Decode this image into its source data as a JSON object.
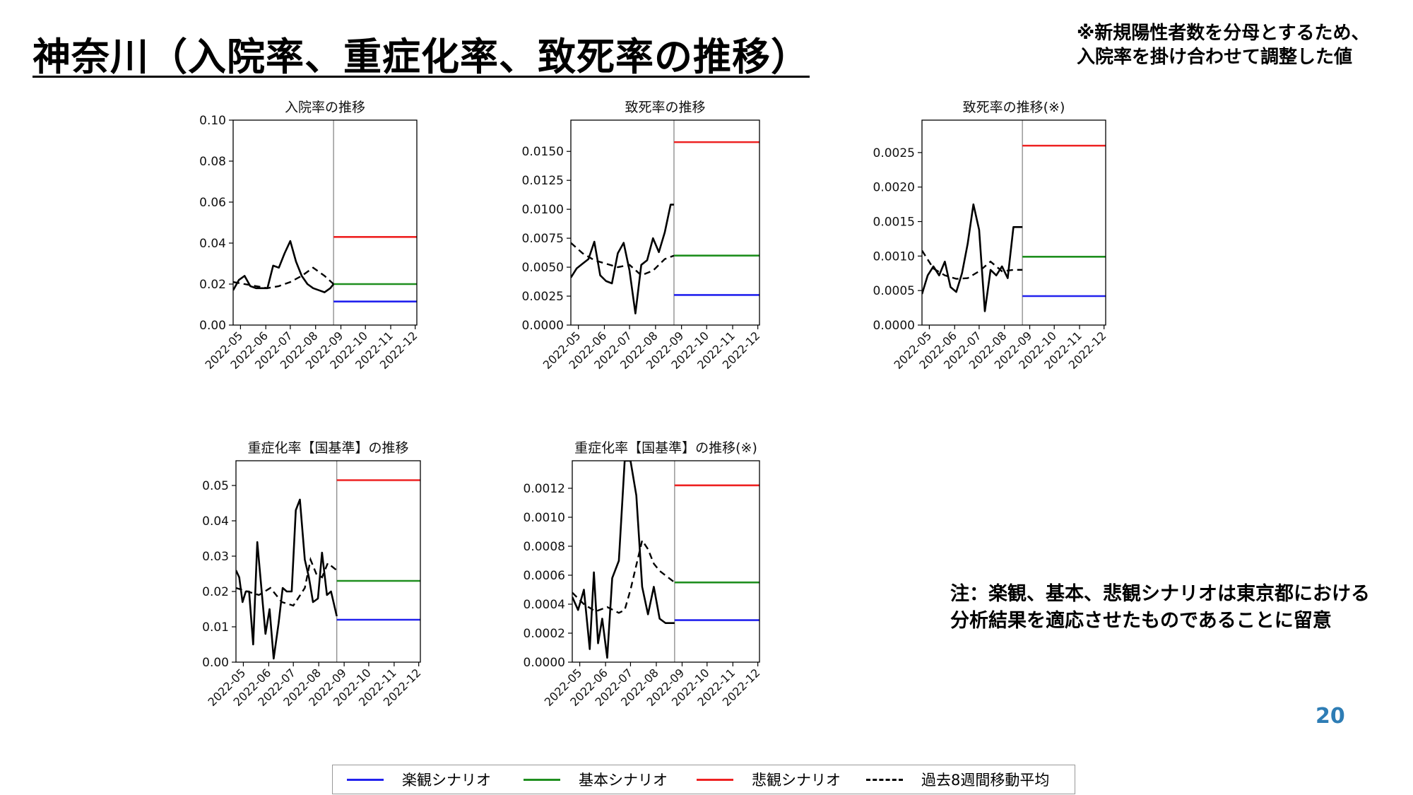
{
  "page": {
    "title": "神奈川（入院率、重症化率、致死率の推移）",
    "footnote": [
      "※新規陽性者数を分母とするため、",
      "入院率を掛け合わせて調整した値"
    ],
    "note": [
      "注：楽観、基本、悲観シナリオは東京都における",
      "分析結果を適応させたものであることに留意"
    ],
    "page_number": "20"
  },
  "colors": {
    "optimistic": "#2222ee",
    "base": "#1f8f1f",
    "pessimistic": "#ee2222",
    "moving_average": "#000000",
    "observed": "#000000",
    "divider": "#888888",
    "page_number": "#2e7db5"
  },
  "legend": [
    {
      "label": "楽観シナリオ",
      "color": "#2222ee",
      "style": "solid"
    },
    {
      "label": "基本シナリオ",
      "color": "#1f8f1f",
      "style": "solid"
    },
    {
      "label": "悲観シナリオ",
      "color": "#ee2222",
      "style": "solid"
    },
    {
      "label": "過去8週間移動平均",
      "color": "#000000",
      "style": "dashed"
    }
  ],
  "chart_data": [
    {
      "type": "line",
      "title": "入院率の推移",
      "xticks": [
        "2022-05",
        "2022-06",
        "2022-07",
        "2022-08",
        "2022-09",
        "2022-10",
        "2022-11",
        "2022-12"
      ],
      "xlim": [
        "2022-04-22",
        "2022-12-03"
      ],
      "ylim": [
        0,
        0.1
      ],
      "yticks": [
        "0.00",
        "0.02",
        "0.04",
        "0.06",
        "0.08",
        "0.10"
      ],
      "yvals": [
        0,
        0.02,
        0.04,
        0.06,
        0.08,
        0.1
      ],
      "divider_date": "2022-08-23",
      "observed": {
        "x": [
          "2022-04-22",
          "2022-04-29",
          "2022-05-06",
          "2022-05-13",
          "2022-05-20",
          "2022-05-27",
          "2022-06-03",
          "2022-06-10",
          "2022-06-17",
          "2022-06-24",
          "2022-07-01",
          "2022-07-08",
          "2022-07-15",
          "2022-07-22",
          "2022-07-29",
          "2022-08-05",
          "2022-08-12",
          "2022-08-19",
          "2022-08-23"
        ],
        "y": [
          0.017,
          0.022,
          0.024,
          0.019,
          0.018,
          0.018,
          0.018,
          0.029,
          0.028,
          0.035,
          0.041,
          0.031,
          0.024,
          0.02,
          0.018,
          0.017,
          0.016,
          0.018,
          0.02
        ]
      },
      "moving_average": {
        "x": [
          "2022-04-22",
          "2022-05-06",
          "2022-05-20",
          "2022-06-03",
          "2022-06-17",
          "2022-07-01",
          "2022-07-15",
          "2022-07-29",
          "2022-08-12",
          "2022-08-23"
        ],
        "y": [
          0.021,
          0.02,
          0.019,
          0.018,
          0.019,
          0.021,
          0.024,
          0.028,
          0.024,
          0.02
        ]
      },
      "scenarios": {
        "optimistic": 0.0115,
        "base": 0.02,
        "pessimistic": 0.043
      }
    },
    {
      "type": "line",
      "title": "致死率の推移",
      "xticks": [
        "2022-05",
        "2022-06",
        "2022-07",
        "2022-08",
        "2022-09",
        "2022-10",
        "2022-11",
        "2022-12"
      ],
      "xlim": [
        "2022-04-22",
        "2022-12-03"
      ],
      "ylim": [
        0,
        0.0177
      ],
      "yticks": [
        "0.0000",
        "0.0025",
        "0.0050",
        "0.0075",
        "0.0100",
        "0.0125",
        "0.0150"
      ],
      "yvals": [
        0,
        0.0025,
        0.005,
        0.0075,
        0.01,
        0.0125,
        0.015
      ],
      "divider_date": "2022-08-23",
      "observed": {
        "x": [
          "2022-04-22",
          "2022-04-29",
          "2022-05-06",
          "2022-05-13",
          "2022-05-20",
          "2022-05-27",
          "2022-06-03",
          "2022-06-10",
          "2022-06-17",
          "2022-06-24",
          "2022-07-01",
          "2022-07-08",
          "2022-07-15",
          "2022-07-22",
          "2022-07-29",
          "2022-08-05",
          "2022-08-12",
          "2022-08-19",
          "2022-08-23"
        ],
        "y": [
          0.0041,
          0.0049,
          0.0053,
          0.0057,
          0.0072,
          0.0043,
          0.0038,
          0.0036,
          0.0062,
          0.0071,
          0.0047,
          0.001,
          0.0052,
          0.0056,
          0.0075,
          0.0063,
          0.008,
          0.0104,
          0.0104
        ]
      },
      "moving_average": {
        "x": [
          "2022-04-22",
          "2022-05-06",
          "2022-05-20",
          "2022-06-03",
          "2022-06-17",
          "2022-07-01",
          "2022-07-15",
          "2022-07-29",
          "2022-08-12",
          "2022-08-23"
        ],
        "y": [
          0.0071,
          0.0062,
          0.0056,
          0.0053,
          0.005,
          0.0052,
          0.0043,
          0.0047,
          0.0057,
          0.006
        ]
      },
      "scenarios": {
        "optimistic": 0.0026,
        "base": 0.006,
        "pessimistic": 0.0158
      }
    },
    {
      "type": "line",
      "title": "致死率の推移(※)",
      "xticks": [
        "2022-05",
        "2022-06",
        "2022-07",
        "2022-08",
        "2022-09",
        "2022-10",
        "2022-11",
        "2022-12"
      ],
      "xlim": [
        "2022-04-22",
        "2022-12-03"
      ],
      "ylim": [
        0,
        0.00297
      ],
      "yticks": [
        "0.0000",
        "0.0005",
        "0.0010",
        "0.0015",
        "0.0020",
        "0.0025"
      ],
      "yvals": [
        0,
        0.0005,
        0.001,
        0.0015,
        0.002,
        0.0025
      ],
      "divider_date": "2022-08-23",
      "observed": {
        "x": [
          "2022-04-22",
          "2022-04-29",
          "2022-05-06",
          "2022-05-13",
          "2022-05-20",
          "2022-05-27",
          "2022-06-03",
          "2022-06-10",
          "2022-06-17",
          "2022-06-24",
          "2022-07-01",
          "2022-07-08",
          "2022-07-15",
          "2022-07-22",
          "2022-07-29",
          "2022-08-05",
          "2022-08-12",
          "2022-08-19",
          "2022-08-23"
        ],
        "y": [
          0.00045,
          0.00072,
          0.00085,
          0.00072,
          0.00092,
          0.00055,
          0.00048,
          0.00075,
          0.00118,
          0.00175,
          0.00138,
          0.0002,
          0.0008,
          0.00072,
          0.00085,
          0.00068,
          0.00142,
          0.00142,
          0.00142
        ]
      },
      "moving_average": {
        "x": [
          "2022-04-22",
          "2022-05-06",
          "2022-05-20",
          "2022-06-03",
          "2022-06-17",
          "2022-07-01",
          "2022-07-15",
          "2022-07-29",
          "2022-08-12",
          "2022-08-23"
        ],
        "y": [
          0.00108,
          0.00082,
          0.00072,
          0.00067,
          0.00068,
          0.00078,
          0.00092,
          0.00078,
          0.0008,
          0.0008
        ]
      },
      "scenarios": {
        "optimistic": 0.00042,
        "base": 0.00099,
        "pessimistic": 0.0026
      }
    },
    {
      "type": "line",
      "title": "重症化率【国基準】の推移",
      "xticks": [
        "2022-05",
        "2022-06",
        "2022-07",
        "2022-08",
        "2022-09",
        "2022-10",
        "2022-11",
        "2022-12"
      ],
      "xlim": [
        "2022-04-22",
        "2022-12-03"
      ],
      "ylim": [
        0,
        0.057
      ],
      "yticks": [
        "0.00",
        "0.01",
        "0.02",
        "0.03",
        "0.04",
        "0.05"
      ],
      "yvals": [
        0,
        0.01,
        0.02,
        0.03,
        0.04,
        0.05
      ],
      "divider_date": "2022-08-23",
      "observed": {
        "x": [
          "2022-04-22",
          "2022-04-26",
          "2022-04-30",
          "2022-05-04",
          "2022-05-08",
          "2022-05-13",
          "2022-05-18",
          "2022-05-23",
          "2022-05-28",
          "2022-06-02",
          "2022-06-07",
          "2022-06-13",
          "2022-06-18",
          "2022-06-23",
          "2022-06-29",
          "2022-07-04",
          "2022-07-09",
          "2022-07-15",
          "2022-07-20",
          "2022-07-25",
          "2022-07-31",
          "2022-08-05",
          "2022-08-11",
          "2022-08-16",
          "2022-08-23"
        ],
        "y": [
          0.026,
          0.024,
          0.017,
          0.02,
          0.02,
          0.005,
          0.034,
          0.021,
          0.008,
          0.015,
          0.001,
          0.011,
          0.021,
          0.02,
          0.02,
          0.043,
          0.046,
          0.029,
          0.024,
          0.017,
          0.018,
          0.031,
          0.019,
          0.02,
          0.013
        ]
      },
      "moving_average": {
        "x": [
          "2022-04-22",
          "2022-05-06",
          "2022-05-20",
          "2022-06-03",
          "2022-06-17",
          "2022-07-01",
          "2022-07-15",
          "2022-07-22",
          "2022-07-29",
          "2022-08-05",
          "2022-08-12",
          "2022-08-23"
        ],
        "y": [
          0.021,
          0.02,
          0.019,
          0.021,
          0.017,
          0.016,
          0.021,
          0.029,
          0.025,
          0.024,
          0.028,
          0.026
        ]
      },
      "scenarios": {
        "optimistic": 0.012,
        "base": 0.023,
        "pessimistic": 0.0515
      }
    },
    {
      "type": "line",
      "title": "重症化率【国基準】の推移(※)",
      "xticks": [
        "2022-05",
        "2022-06",
        "2022-07",
        "2022-08",
        "2022-09",
        "2022-10",
        "2022-11",
        "2022-12"
      ],
      "xlim": [
        "2022-04-22",
        "2022-12-03"
      ],
      "ylim": [
        0,
        0.00139
      ],
      "yticks": [
        "0.0000",
        "0.0002",
        "0.0004",
        "0.0006",
        "0.0008",
        "0.0010",
        "0.0012"
      ],
      "yvals": [
        0,
        0.0002,
        0.0004,
        0.0006,
        0.0008,
        0.001,
        0.0012
      ],
      "divider_date": "2022-08-23",
      "observed": {
        "x": [
          "2022-04-22",
          "2022-04-29",
          "2022-05-06",
          "2022-05-13",
          "2022-05-18",
          "2022-05-23",
          "2022-05-28",
          "2022-06-03",
          "2022-06-09",
          "2022-06-17",
          "2022-06-24",
          "2022-07-01",
          "2022-07-08",
          "2022-07-15",
          "2022-07-22",
          "2022-07-29",
          "2022-08-05",
          "2022-08-12",
          "2022-08-19",
          "2022-08-23"
        ],
        "y": [
          0.00045,
          0.00036,
          0.0005,
          9e-05,
          0.00062,
          0.00013,
          0.0003,
          3e-05,
          0.00058,
          0.0007,
          0.00139,
          0.00139,
          0.00115,
          0.00052,
          0.00033,
          0.00052,
          0.0003,
          0.00027,
          0.00027,
          0.00027
        ]
      },
      "moving_average": {
        "x": [
          "2022-04-22",
          "2022-05-06",
          "2022-05-20",
          "2022-06-03",
          "2022-06-17",
          "2022-06-24",
          "2022-07-01",
          "2022-07-15",
          "2022-07-22",
          "2022-07-29",
          "2022-08-05",
          "2022-08-23"
        ],
        "y": [
          0.00048,
          0.0004,
          0.00035,
          0.00038,
          0.00034,
          0.00036,
          0.0005,
          0.00084,
          0.00078,
          0.00068,
          0.00063,
          0.00055
        ]
      },
      "scenarios": {
        "optimistic": 0.00029,
        "base": 0.00055,
        "pessimistic": 0.00122
      }
    }
  ]
}
